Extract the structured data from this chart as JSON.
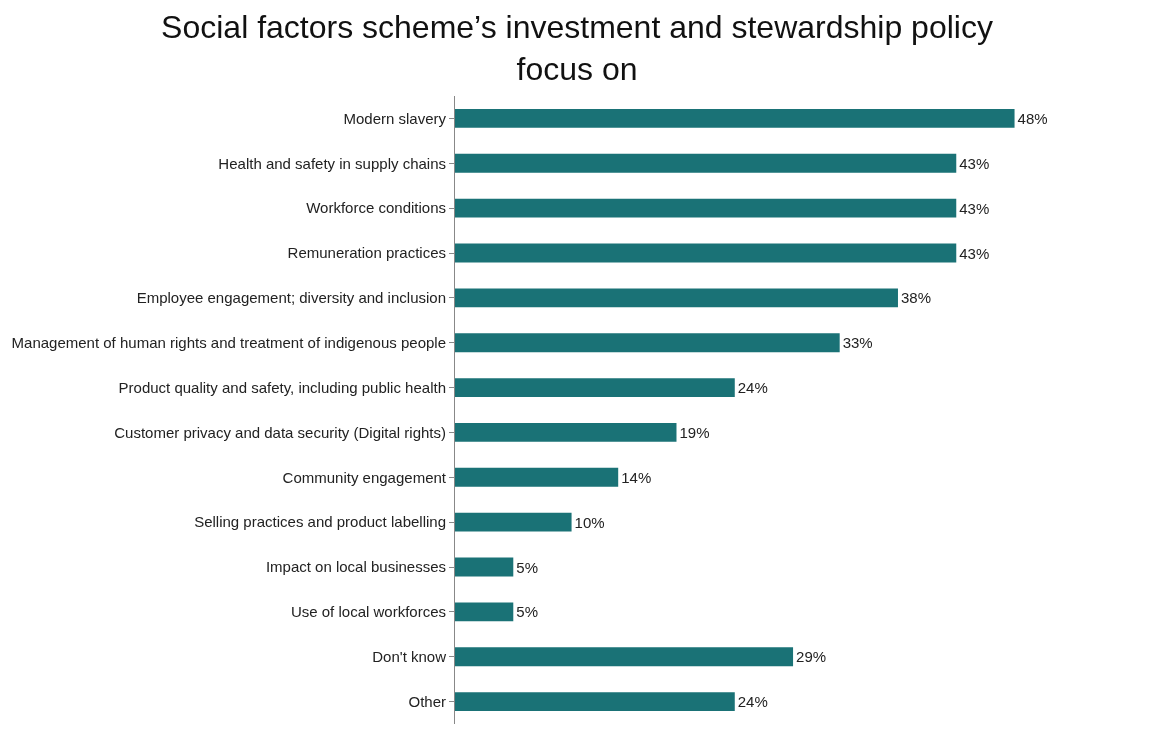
{
  "chart_data": {
    "type": "bar",
    "orientation": "horizontal",
    "title": "Social factors scheme’s investment and stewardship policy focus on",
    "categories": [
      "Modern slavery",
      "Health and safety in supply chains",
      "Workforce conditions",
      "Remuneration practices",
      "Employee engagement; diversity and inclusion",
      "Management of human rights and treatment of indigenous people",
      "Product quality and safety, including public health",
      "Customer privacy and data security (Digital rights)",
      "Community engagement",
      "Selling practices and product labelling",
      "Impact on local businesses",
      "Use of local workforces",
      "Don't know",
      "Other"
    ],
    "values": [
      48,
      43,
      43,
      43,
      38,
      33,
      24,
      19,
      14,
      10,
      5,
      5,
      29,
      24
    ],
    "value_labels": [
      "48%",
      "43%",
      "43%",
      "43%",
      "38%",
      "33%",
      "24%",
      "19%",
      "14%",
      "10%",
      "5%",
      "5%",
      "29%",
      "24%"
    ],
    "color": "#1a7276",
    "grid": false
  }
}
